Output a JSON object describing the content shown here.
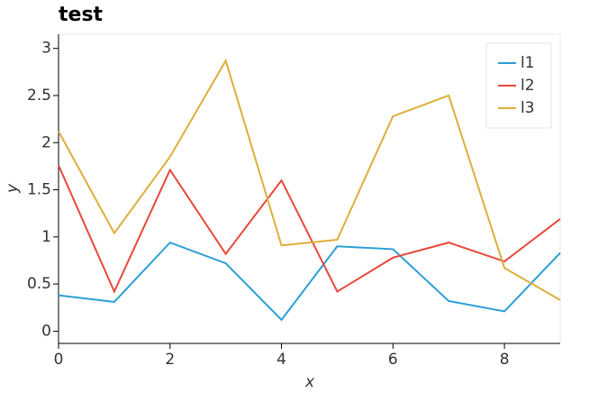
{
  "chart_data": {
    "type": "line",
    "title": "test",
    "x_label": "x",
    "y_label": "y",
    "x": [
      0,
      1,
      2,
      3,
      4,
      5,
      6,
      7,
      8,
      9
    ],
    "series": [
      {
        "name": "l1",
        "color": "#2a9fd6",
        "values": [
          0.38,
          0.31,
          0.94,
          0.72,
          0.12,
          0.9,
          0.87,
          0.32,
          0.21,
          0.83
        ]
      },
      {
        "name": "l2",
        "color": "#e5493a",
        "values": [
          1.76,
          0.42,
          1.71,
          0.82,
          1.6,
          0.42,
          0.78,
          0.94,
          0.74,
          1.19
        ]
      },
      {
        "name": "l3",
        "color": "#ddaf3b",
        "values": [
          2.12,
          1.04,
          1.85,
          2.87,
          0.91,
          0.97,
          2.28,
          2.5,
          0.67,
          0.33
        ]
      }
    ],
    "xlim": [
      0,
      9
    ],
    "xticks": [
      0,
      2,
      4,
      6,
      8
    ],
    "ylim": [
      -0.13,
      3.15
    ],
    "yticks": [
      0,
      0.5,
      1,
      1.5,
      2,
      2.5,
      3
    ],
    "legend": "top-right",
    "grid": false
  }
}
